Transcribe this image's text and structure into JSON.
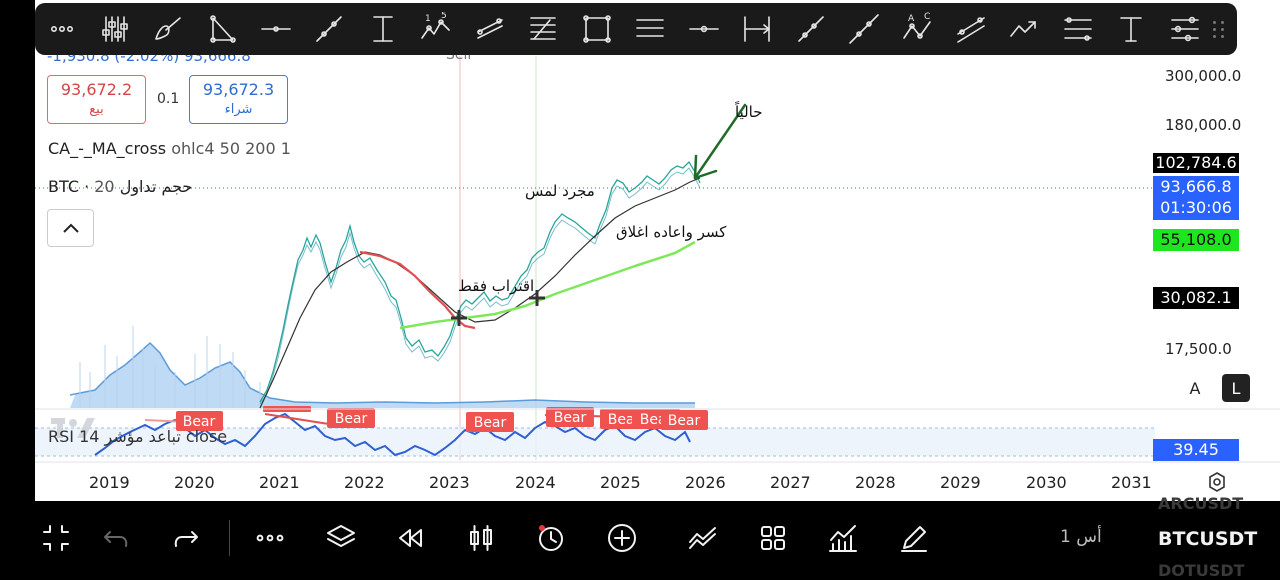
{
  "toolbar": {
    "tools": [
      "more-icon",
      "indicator-sliders-icon",
      "brush-icon",
      "fib-triangle-icon",
      "horizontal-line-icon",
      "trend-line-icon",
      "vertical-measure-icon",
      "elliott-wave-icon",
      "pitchfork-icon",
      "fib-retracement-icon",
      "rectangle-icon",
      "parallel-lines-icon",
      "horizontal-ray-icon",
      "date-range-icon",
      "ray-icon",
      "extended-line-icon",
      "abcd-pattern-icon",
      "parallel-channel-icon",
      "arrow-path-icon",
      "regression-icon",
      "text-icon",
      "settings-list-icon"
    ],
    "wave_labels": [
      "1",
      "5"
    ],
    "abcd_labels": [
      "A",
      "C"
    ],
    "text_tool": "T"
  },
  "header": {
    "change_text": "-1,930.8 (-2.02%) 93,666.8",
    "sell_marker": "Sell"
  },
  "order_boxes": {
    "sell_price": "93,672.2",
    "sell_label": "بيع",
    "spread": "0.1",
    "buy_price": "93,672.3",
    "buy_label": "شراء"
  },
  "legend": {
    "ma_cross": "CA_-_MA_cross",
    "ma_params": "ohlc4 50 200 1",
    "volume_symbol": "BTC ·",
    "volume_label": "حجم تداول",
    "volume_length": "20",
    "rsi_label": "RSI تباعد مؤشر 14 close"
  },
  "price_axis": {
    "labels": [
      "300,000.0",
      "180,000.0",
      "17,500.0"
    ],
    "tags": {
      "high": "102,784.6",
      "last": "93,666.8",
      "countdown": "01:30:06",
      "ma": "55,108.0",
      "low": "30,082.1",
      "rsi": "39.45"
    },
    "scale": "log",
    "auto_label": "A",
    "log_label": "L"
  },
  "time_axis": {
    "labels": [
      "2019",
      "2020",
      "2021",
      "2022",
      "2023",
      "2024",
      "2025",
      "2026",
      "2027",
      "2028",
      "2029",
      "2030",
      "2031"
    ]
  },
  "annotations": {
    "now": "حالياً",
    "test_only": "مجرد لمس",
    "break_close": "كسر واعاده اغلاق",
    "approach_only": "اقتراب فقط"
  },
  "rsi": {
    "bear_label": "Bear"
  },
  "bottom": {
    "icons": [
      "fullscreen-icon",
      "undo-icon",
      "redo-icon",
      "more-icon",
      "layers-icon",
      "replay-icon",
      "candle-type-icon",
      "alert-clock-icon",
      "add-icon",
      "compare-icon",
      "layout-grid-icon",
      "indicators-icon",
      "draw-pen-icon"
    ],
    "interval": "1 أس",
    "symbol": "BTCUSDT",
    "symbol_prev": "ARCUSDT",
    "symbol_next": "DOTUSDT"
  },
  "colors": {
    "ma_fast": "#222222",
    "ma_slow_bull": "#7ee85a",
    "ma_slow_bear": "#e05050",
    "candles": "#26a69a",
    "rsi_line": "#2f5fd1",
    "volume": "#7fb3e6",
    "price_tag_blue": "#2962ff",
    "arrow": "#1f6b2a"
  }
}
